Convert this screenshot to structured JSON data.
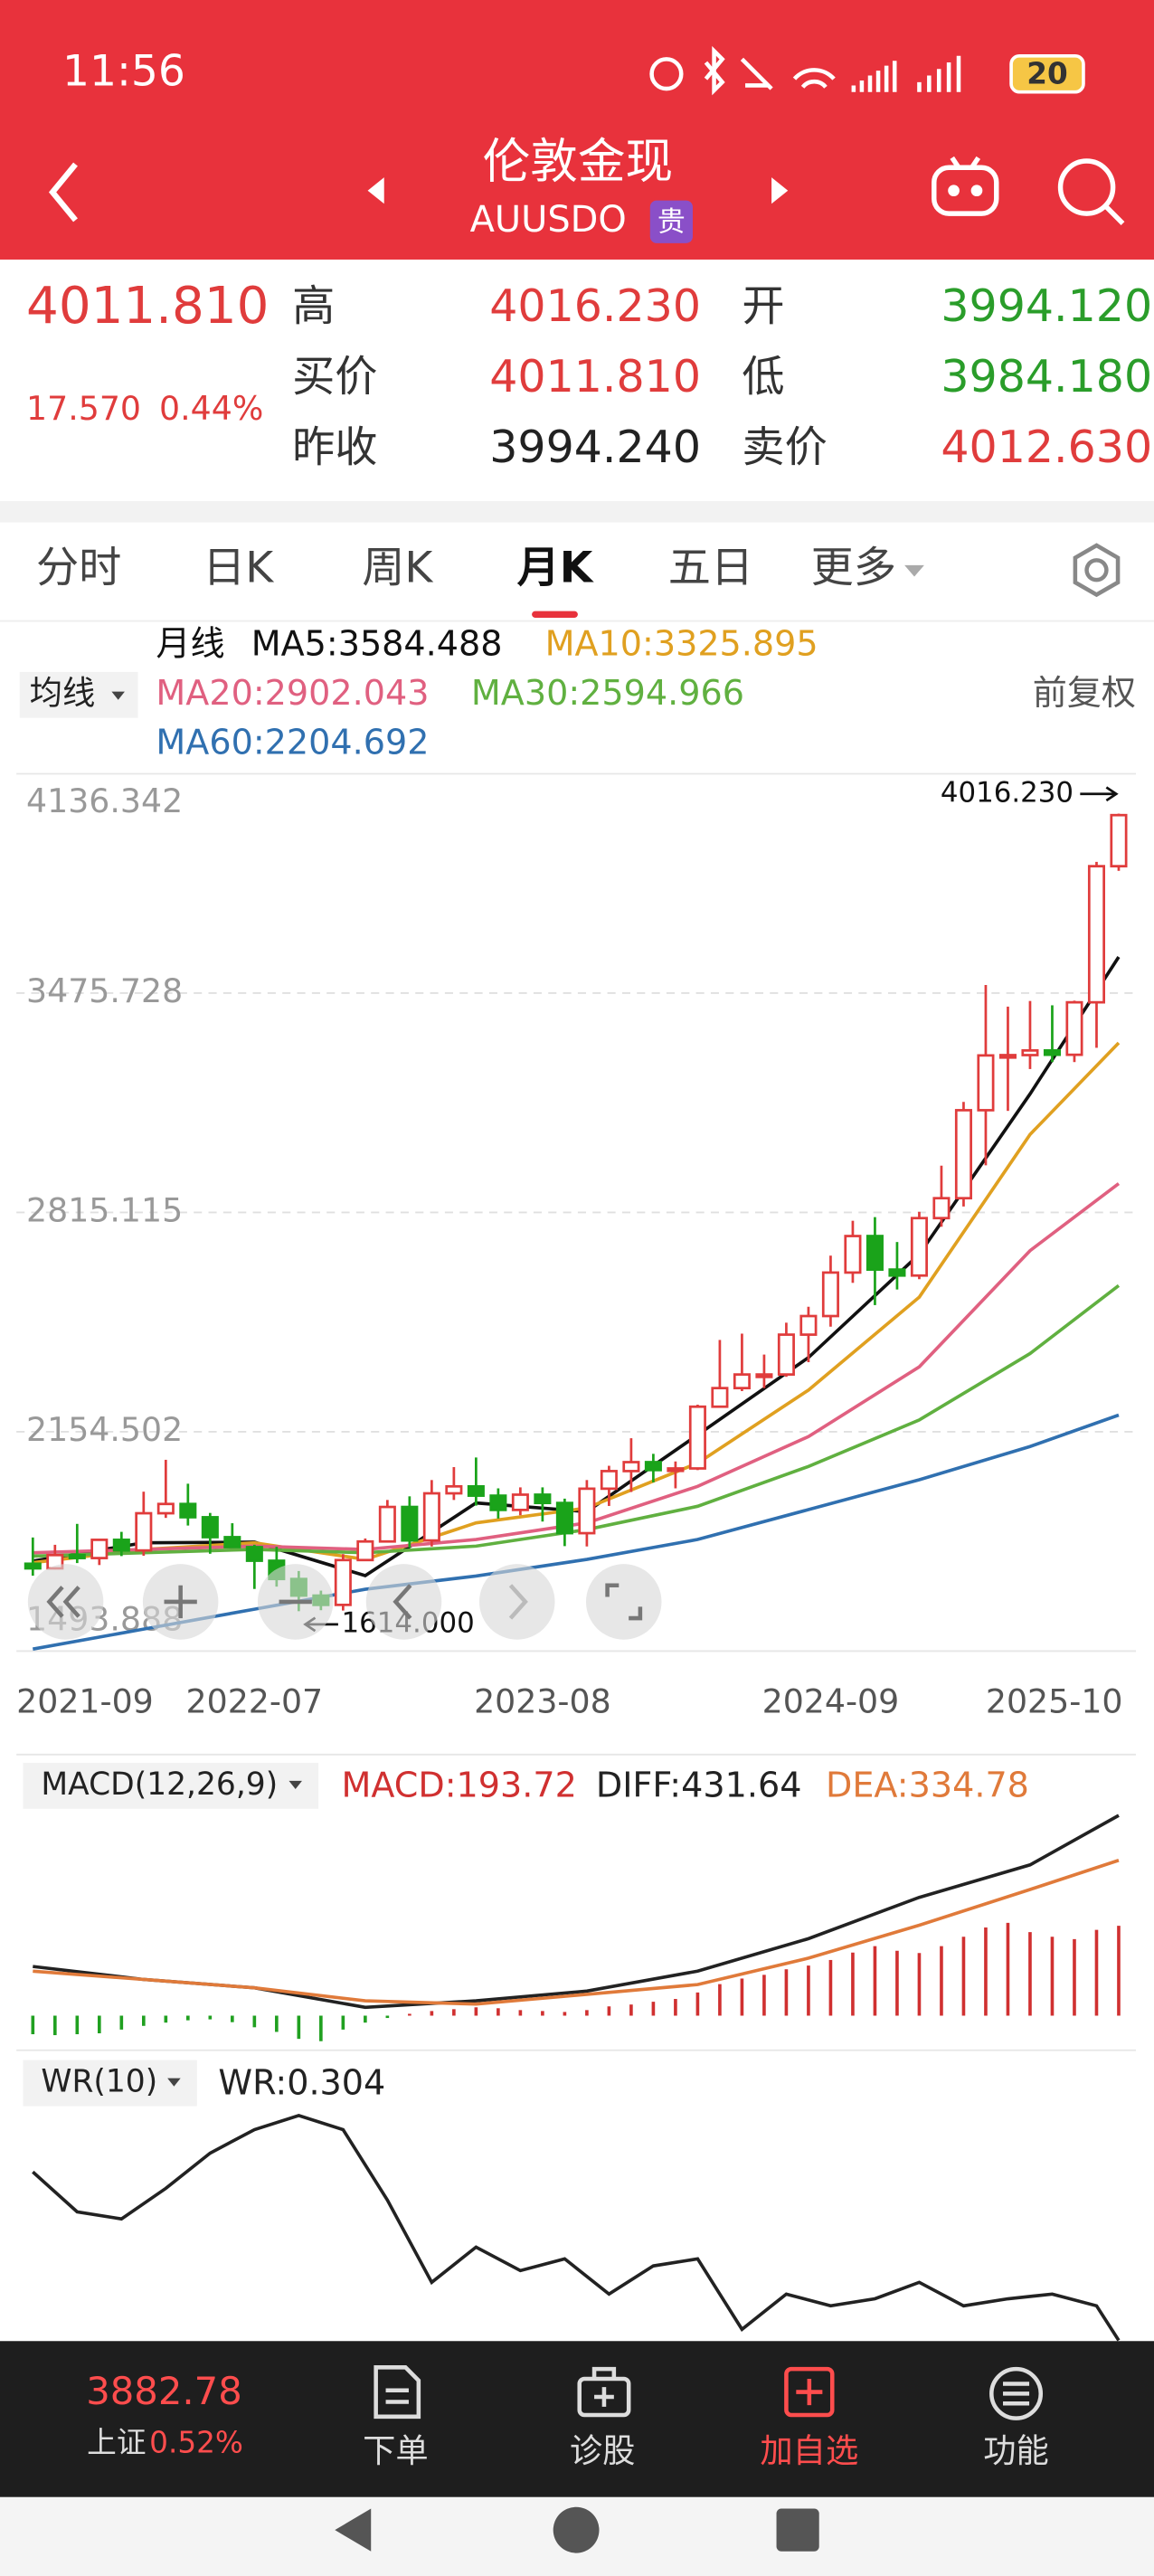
{
  "status_bar": {
    "time": "11:56",
    "battery": "20"
  },
  "header": {
    "title": "伦敦金现",
    "code": "AUUSDO",
    "badge": "贵"
  },
  "quote": {
    "price": "4011.810",
    "change": "17.570",
    "change_pct": "0.44%",
    "fields": [
      {
        "label": "高",
        "value": "4016.230",
        "color": "#e03c3c"
      },
      {
        "label": "买价",
        "value": "4011.810",
        "color": "#e03c3c"
      },
      {
        "label": "昨收",
        "value": "3994.240",
        "color": "#222222"
      },
      {
        "label": "开",
        "value": "3994.120",
        "color": "#2a9d2a"
      },
      {
        "label": "低",
        "value": "3984.180",
        "color": "#2a9d2a"
      },
      {
        "label": "卖价",
        "value": "4012.630",
        "color": "#e03c3c"
      }
    ]
  },
  "tabs": [
    "分时",
    "日K",
    "周K",
    "月K",
    "五日",
    "更多"
  ],
  "active_tab": 3,
  "chart_data": [
    {
      "type": "candlestick",
      "indicator_label": "均线",
      "period_label": "月线",
      "adjust_label": "前复权",
      "categories": [
        "2021-09",
        null,
        null,
        null,
        null,
        null,
        null,
        null,
        null,
        null,
        "2022-07",
        null,
        null,
        null,
        null,
        null,
        null,
        null,
        null,
        null,
        null,
        null,
        null,
        "2023-08",
        null,
        null,
        null,
        null,
        null,
        null,
        null,
        null,
        null,
        null,
        null,
        null,
        "2024-09",
        null,
        null,
        null,
        null,
        null,
        null,
        null,
        null,
        null,
        null,
        null,
        null,
        "2025-10"
      ],
      "ohlc": [
        [
          1757,
          1836,
          1721,
          1743
        ],
        [
          1743,
          1814,
          1740,
          1783
        ],
        [
          1783,
          1877,
          1759,
          1774
        ],
        [
          1774,
          1831,
          1753,
          1829
        ],
        [
          1829,
          1853,
          1780,
          1797
        ],
        [
          1797,
          1974,
          1781,
          1909
        ],
        [
          1909,
          2070,
          1895,
          1937
        ],
        [
          1937,
          1998,
          1872,
          1897
        ],
        [
          1897,
          1910,
          1787,
          1837
        ],
        [
          1837,
          1879,
          1805,
          1807
        ],
        [
          1807,
          1814,
          1681,
          1766
        ],
        [
          1766,
          1808,
          1688,
          1711
        ],
        [
          1711,
          1735,
          1614,
          1661
        ],
        [
          1661,
          1676,
          1617,
          1633
        ],
        [
          1633,
          1786,
          1616,
          1768
        ],
        [
          1768,
          1833,
          1765,
          1824
        ],
        [
          1824,
          1949,
          1823,
          1928
        ],
        [
          1928,
          1960,
          1805,
          1827
        ],
        [
          1827,
          2009,
          1809,
          1969
        ],
        [
          1969,
          2048,
          1949,
          1990
        ],
        [
          1990,
          2077,
          1932,
          1962
        ],
        [
          1962,
          1984,
          1893,
          1919
        ],
        [
          1919,
          1987,
          1903,
          1965
        ],
        [
          1965,
          1987,
          1884,
          1940
        ],
        [
          1940,
          1953,
          1810,
          1849
        ],
        [
          1849,
          2009,
          1809,
          1983
        ],
        [
          1983,
          2052,
          1931,
          2036
        ],
        [
          2036,
          2135,
          1973,
          2063
        ],
        [
          2063,
          2088,
          2002,
          2039
        ],
        [
          2039,
          2065,
          1984,
          2044
        ],
        [
          2044,
          2236,
          2039,
          2230
        ],
        [
          2230,
          2431,
          2228,
          2286
        ],
        [
          2286,
          2450,
          2277,
          2327
        ],
        [
          2327,
          2387,
          2286,
          2327
        ],
        [
          2327,
          2483,
          2320,
          2447
        ],
        [
          2447,
          2531,
          2364,
          2503
        ],
        [
          2503,
          2685,
          2471,
          2634
        ],
        [
          2634,
          2790,
          2603,
          2744
        ],
        [
          2744,
          2801,
          2536,
          2643
        ],
        [
          2643,
          2726,
          2583,
          2625
        ],
        [
          2625,
          2817,
          2614,
          2798
        ],
        [
          2798,
          2956,
          2772,
          2858
        ],
        [
          2858,
          3148,
          2833,
          3123
        ],
        [
          3123,
          3500,
          2957,
          3288
        ],
        [
          3288,
          3435,
          3121,
          3289
        ],
        [
          3289,
          3452,
          3247,
          3303
        ],
        [
          3303,
          3439,
          3268,
          3290
        ],
        [
          3290,
          3453,
          3268,
          3448
        ],
        [
          3448,
          3871,
          3311,
          3858
        ],
        [
          3858,
          4016.23,
          3844,
          4011.81
        ]
      ],
      "up_color": "#e03c3c",
      "down_color": "#1aa31a",
      "series": [
        {
          "name": "MA5:3584.488",
          "color": "#111111",
          "x": [
            0,
            5,
            10,
            15,
            20,
            25,
            30,
            35,
            40,
            45,
            49
          ],
          "values": [
            1765,
            1820,
            1822,
            1721,
            1940,
            1914,
            2145,
            2378,
            2689,
            3172,
            3584.488
          ]
        },
        {
          "name": "MA10:3325.895",
          "color": "#e0a020",
          "x": [
            0,
            5,
            10,
            15,
            20,
            25,
            30,
            35,
            40,
            45,
            49
          ],
          "values": [
            1760,
            1800,
            1820,
            1770,
            1880,
            1925,
            2060,
            2280,
            2560,
            3050,
            3325.895
          ]
        },
        {
          "name": "MA20:2902.043",
          "color": "#e06080",
          "x": [
            0,
            5,
            10,
            15,
            20,
            25,
            30,
            35,
            40,
            45,
            49
          ],
          "values": [
            1790,
            1800,
            1810,
            1800,
            1830,
            1880,
            1990,
            2140,
            2350,
            2700,
            2902.043
          ]
        },
        {
          "name": "MA30:2594.966",
          "color": "#60b040",
          "x": [
            0,
            5,
            10,
            15,
            20,
            25,
            30,
            35,
            40,
            45,
            49
          ],
          "values": [
            1780,
            1790,
            1800,
            1790,
            1810,
            1860,
            1930,
            2050,
            2190,
            2390,
            2594.966
          ]
        },
        {
          "name": "MA60:2204.692",
          "color": "#3070b0",
          "x": [
            0,
            5,
            10,
            15,
            20,
            25,
            30,
            35,
            40,
            45,
            49
          ],
          "values": [
            1500,
            1560,
            1620,
            1680,
            1720,
            1770,
            1830,
            1920,
            2010,
            2110,
            2204.692
          ]
        }
      ],
      "ylim": [
        1493.888,
        4136.342
      ],
      "yticks": [
        1493.888,
        2154.502,
        2815.115,
        3475.728,
        4136.342
      ],
      "grid": true,
      "max_label": "4016.230",
      "min_label": "1614.000"
    },
    {
      "type": "macd",
      "title": "MACD(12,26,9)",
      "ylim": [
        -64,
        538
      ],
      "series": [
        {
          "name": "MACD:193.72",
          "kind": "bar",
          "up_color": "#d03030",
          "down_color": "#20a020",
          "values": [
            -40,
            -42,
            -40,
            -38,
            -30,
            -22,
            -15,
            -10,
            -8,
            -14,
            -25,
            -35,
            -50,
            -55,
            -30,
            -15,
            -5,
            4,
            10,
            14,
            18,
            16,
            12,
            10,
            8,
            12,
            20,
            24,
            30,
            36,
            50,
            68,
            80,
            88,
            100,
            108,
            120,
            136,
            150,
            140,
            135,
            150,
            170,
            190,
            200,
            180,
            170,
            165,
            185,
            193.72
          ]
        },
        {
          "name": "DIFF:431.64",
          "kind": "line",
          "color": "#222222",
          "x": [
            0,
            5,
            10,
            15,
            20,
            25,
            30,
            35,
            40,
            45,
            49
          ],
          "values": [
            106,
            78,
            60,
            18,
            32,
            53,
            96,
            166,
            255,
            325,
            431.64
          ]
        },
        {
          "name": "DEA:334.78",
          "kind": "line",
          "color": "#e07a3a",
          "x": [
            0,
            5,
            10,
            15,
            20,
            25,
            30,
            35,
            40,
            45,
            49
          ],
          "values": [
            96,
            78,
            60,
            32,
            25,
            46,
            67,
            124,
            195,
            272,
            334.78
          ]
        }
      ]
    },
    {
      "type": "line",
      "title": "WR(10)",
      "ylim": [
        0,
        100
      ],
      "series": [
        {
          "name": "WR:0.304",
          "color": "#222222",
          "x": [
            0,
            2,
            4,
            6,
            8,
            10,
            12,
            14,
            16,
            18,
            20,
            22,
            24,
            26,
            28,
            30,
            32,
            34,
            36,
            38,
            40,
            42,
            44,
            46,
            48,
            49
          ],
          "values": [
            72,
            55,
            52,
            65,
            80,
            90,
            96,
            90,
            60,
            25,
            40,
            30,
            35,
            20,
            32,
            35,
            5,
            20,
            15,
            18,
            25,
            15,
            18,
            20,
            15,
            0.304
          ]
        }
      ]
    }
  ],
  "bottom_bar": {
    "index_value": "3882.78",
    "index_name": "上证",
    "index_change": "0.52%",
    "buttons": [
      "下单",
      "诊股",
      "加自选",
      "功能"
    ]
  }
}
